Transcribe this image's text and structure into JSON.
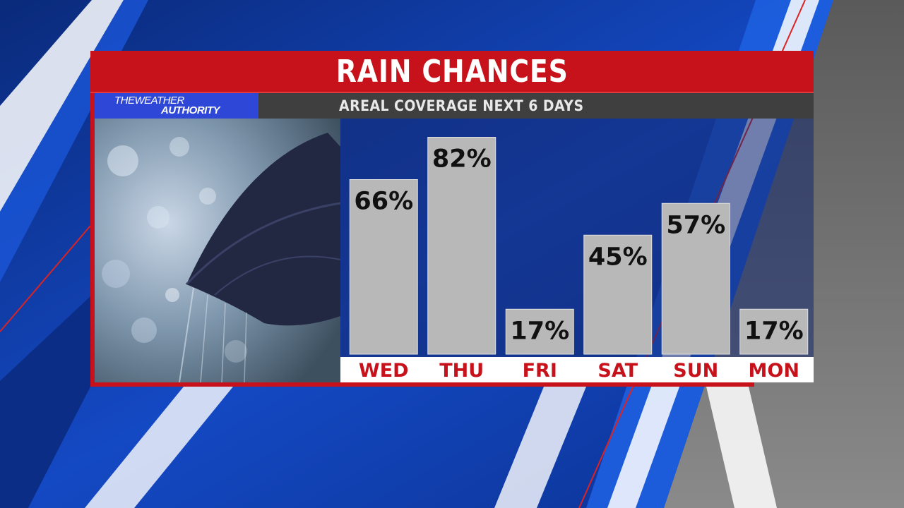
{
  "header": {
    "title": "RAIN CHANCES",
    "subtitle": "AREAL COVERAGE NEXT 6 DAYS"
  },
  "logo": {
    "line1": "THEWEATHER",
    "line2": "AUTHORITY"
  },
  "photo": {
    "icon": "umbrella-in-rain-photo"
  },
  "colors": {
    "brand_red": "#c8121b",
    "logo_blue": "#2f47d6",
    "bar_fill": "#b8b8b8",
    "background_blue": "#0d3a9e"
  },
  "chart_data": {
    "type": "bar",
    "title": "RAIN CHANCES",
    "subtitle": "AREAL COVERAGE NEXT 6 DAYS",
    "categories": [
      "WED",
      "THU",
      "FRI",
      "SAT",
      "SUN",
      "MON"
    ],
    "values": [
      66,
      82,
      17,
      45,
      57,
      17
    ],
    "value_labels": [
      "66%",
      "82%",
      "17%",
      "45%",
      "57%",
      "17%"
    ],
    "unit": "%",
    "ylim": [
      0,
      100
    ],
    "grid": false,
    "legend": "none"
  }
}
